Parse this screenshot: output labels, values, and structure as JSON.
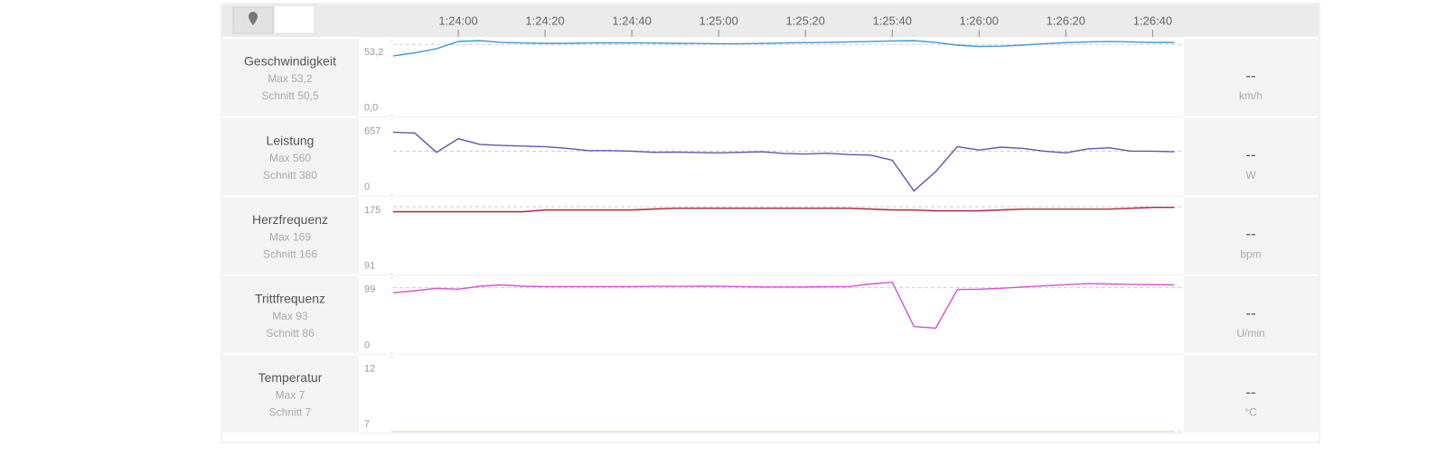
{
  "chart_data": {
    "type": "line",
    "xlim": [
      5025,
      5207
    ],
    "xticks": [
      {
        "value": 5040,
        "label": "1:24:00"
      },
      {
        "value": 5060,
        "label": "1:24:20"
      },
      {
        "value": 5080,
        "label": "1:24:40"
      },
      {
        "value": 5100,
        "label": "1:25:00"
      },
      {
        "value": 5120,
        "label": "1:25:20"
      },
      {
        "value": 5140,
        "label": "1:25:40"
      },
      {
        "value": 5160,
        "label": "1:26:00"
      },
      {
        "value": 5180,
        "label": "1:26:20"
      },
      {
        "value": 5200,
        "label": "1:26:40"
      }
    ],
    "x": [
      5025,
      5030,
      5035,
      5040,
      5045,
      5050,
      5055,
      5060,
      5065,
      5070,
      5075,
      5080,
      5085,
      5090,
      5095,
      5100,
      5105,
      5110,
      5115,
      5120,
      5125,
      5130,
      5135,
      5140,
      5145,
      5150,
      5155,
      5160,
      5165,
      5170,
      5175,
      5180,
      5185,
      5190,
      5195,
      5200,
      5205
    ],
    "panels": [
      {
        "title": "Geschwindigkeit",
        "max_label": "Max 53,2",
        "avg_label": "Schnitt 50,5",
        "current": "--",
        "unit": "km/h",
        "average": 50.5,
        "ylim": [
          0,
          53.2
        ],
        "yticks": [
          {
            "value": 53.2,
            "label": "53,2"
          },
          {
            "value": 0,
            "label": "0,0"
          }
        ],
        "series": [
          {
            "color": "#3a9ad9",
            "values": [
              42.3,
              44.5,
              47.5,
              52.6,
              53.2,
              52.0,
              51.5,
              51.3,
              51.3,
              51.5,
              51.6,
              51.6,
              51.5,
              51.3,
              51.2,
              51.0,
              51.0,
              51.2,
              51.5,
              51.8,
              52.0,
              52.3,
              52.6,
              53.0,
              53.2,
              52.0,
              50.0,
              49.0,
              49.2,
              50.0,
              51.0,
              51.8,
              52.3,
              52.6,
              52.3,
              51.9,
              51.9
            ]
          }
        ]
      },
      {
        "title": "Leistung",
        "max_label": "Max 560",
        "avg_label": "Schnitt 380",
        "current": "--",
        "unit": "W",
        "average": 380,
        "ylim": [
          0,
          657
        ],
        "yticks": [
          657,
          0
        ],
        "series": [
          {
            "color": "#6a4fb0",
            "values": [
              547,
              540,
              370,
              490,
              440,
              430,
              425,
              420,
              405,
              385,
              385,
              380,
              370,
              372,
              368,
              365,
              370,
              375,
              360,
              355,
              362,
              350,
              345,
              300,
              30,
              200,
              420,
              390,
              415,
              405,
              380,
              365,
              400,
              410,
              380,
              380,
              375
            ]
          }
        ]
      },
      {
        "title": "Herzfrequenz",
        "max_label": "Max 169",
        "avg_label": "Schnitt 166",
        "current": "--",
        "unit": "bpm",
        "average": 166,
        "ylim": [
          91,
          175
        ],
        "yticks": [
          175,
          91
        ],
        "series": [
          {
            "color": "#b0223a",
            "values": [
              160.5,
              160.5,
              160.5,
              160.5,
              160.5,
              160.5,
              160.5,
              162.5,
              162.5,
              162.5,
              162.5,
              162.5,
              163.5,
              164.4,
              164.4,
              164.4,
              164.4,
              164.4,
              164.4,
              164.4,
              164.4,
              164.4,
              163.5,
              162.5,
              162.5,
              161.5,
              161.5,
              161.5,
              162.5,
              163.4,
              163.4,
              163.4,
              163.4,
              163.4,
              164.4,
              165.3,
              165.3
            ]
          }
        ]
      },
      {
        "title": "Trittfrequenz",
        "max_label": "Max 93",
        "avg_label": "Schnitt 86",
        "current": "--",
        "unit": "U/min",
        "average": 86,
        "ylim": [
          0,
          99
        ],
        "yticks": [
          99,
          0
        ],
        "series": [
          {
            "color": "#d84fd8",
            "values": [
              79.4,
              82,
              85.2,
              84,
              88,
              89.8,
              88,
              87.5,
              87.5,
              87.5,
              87.5,
              87.5,
              87.8,
              87.8,
              88,
              88,
              87.5,
              87,
              87,
              87,
              87.3,
              87.5,
              91,
              93.2,
              34.5,
              32.2,
              83.5,
              84,
              85.2,
              87,
              88.5,
              90,
              91.5,
              91,
              90.5,
              90,
              89.8
            ]
          }
        ]
      },
      {
        "title": "Temperatur",
        "max_label": "Max 7",
        "avg_label": "Schnitt 7",
        "current": "--",
        "unit": "°C",
        "average": 7,
        "ylim": [
          7,
          12
        ],
        "yticks": [
          12,
          7
        ],
        "series": [
          {
            "color": "#d6e8c4",
            "values": [
              7,
              7,
              7,
              7,
              7,
              7,
              7,
              7,
              7,
              7,
              7,
              7,
              7,
              7,
              7,
              7,
              7,
              7,
              7,
              7,
              7,
              7,
              7,
              7,
              7,
              7,
              7,
              7,
              7,
              7,
              7,
              7,
              7,
              7,
              7,
              7,
              7
            ]
          }
        ]
      }
    ]
  }
}
